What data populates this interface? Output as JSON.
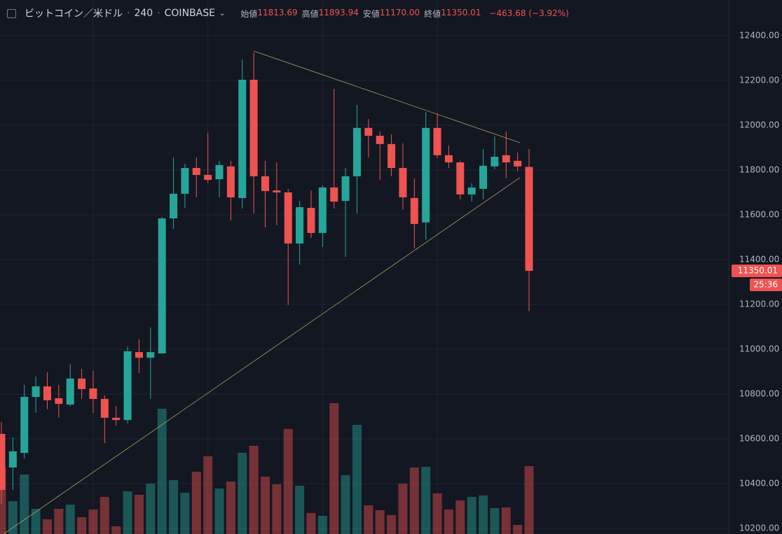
{
  "header": {
    "symbol": "ビットコイン／米ドル",
    "interval": "240",
    "exchange": "COINBASE",
    "ohlc": [
      {
        "label": "始値",
        "value": "11813.69"
      },
      {
        "label": "高値",
        "value": "11893.94"
      },
      {
        "label": "安値",
        "value": "11170.00"
      },
      {
        "label": "終値",
        "value": "11350.01"
      }
    ],
    "change": "−463.68 (−3.92%)"
  },
  "chart_data": {
    "type": "candlestick",
    "open": [
      10622,
      10472,
      10537,
      10787,
      10834,
      10781,
      10753,
      10869,
      10825,
      10778,
      10694,
      10684,
      10987,
      10962,
      10981,
      11584,
      11694,
      11809,
      11778,
      11759,
      11816,
      11675,
      12203,
      11772,
      11709,
      11700,
      11472,
      11631,
      11519,
      11722,
      11662,
      11772,
      11988,
      11953,
      11916,
      11809,
      11675,
      11566,
      11988,
      11866,
      11834,
      11691,
      11716,
      11816,
      11866,
      11841,
      11813.69
    ],
    "high": [
      10675,
      10606,
      10841,
      10878,
      10897,
      10841,
      10934,
      10912,
      10903,
      10794,
      10747,
      11012,
      11044,
      11097,
      11591,
      11856,
      11828,
      11856,
      11966,
      11841,
      11841,
      12294,
      12325,
      11841,
      11834,
      11716,
      11662,
      11709,
      11731,
      12162,
      11809,
      12091,
      12028,
      11972,
      11959,
      11919,
      11763,
      12059,
      12053,
      11909,
      11841,
      11741,
      11894,
      11950,
      11972,
      11878,
      11893.94
    ],
    "low": [
      10309,
      10372,
      10512,
      10716,
      10731,
      10694,
      10747,
      10778,
      10716,
      10581,
      10659,
      10669,
      10894,
      10778,
      10981,
      11537,
      11631,
      11678,
      11741,
      11678,
      11575,
      11628,
      11606,
      11544,
      11553,
      11197,
      11378,
      11497,
      11456,
      11628,
      11412,
      11606,
      11856,
      11756,
      11772,
      11622,
      11450,
      11488,
      11853,
      11809,
      11669,
      11659,
      11669,
      11803,
      11763,
      11794,
      11170
    ],
    "close": [
      10372,
      10544,
      10787,
      10834,
      10772,
      10756,
      10869,
      10822,
      10778,
      10694,
      10684,
      10991,
      10962,
      10987,
      11584,
      11694,
      11809,
      11778,
      11756,
      11822,
      11678,
      12203,
      11772,
      11706,
      11700,
      11472,
      11634,
      11519,
      11722,
      11659,
      11772,
      11988,
      11953,
      11916,
      11809,
      11678,
      11559,
      11988,
      11866,
      11834,
      11691,
      11722,
      11819,
      11859,
      11834,
      11816,
      11350.01
    ],
    "volume": [
      95,
      47,
      85,
      36,
      21,
      36,
      42,
      24,
      35,
      53,
      11,
      61,
      56,
      72,
      179,
      77,
      59,
      89,
      111,
      65,
      75,
      116,
      126,
      82,
      71,
      150,
      69,
      30,
      26,
      187,
      84,
      156,
      41,
      34,
      27,
      72,
      95,
      96,
      58,
      35,
      48,
      53,
      55,
      37,
      38,
      13,
      97
    ],
    "up_color": "#26a69a",
    "down_color": "#ef5350",
    "ylim": [
      10175,
      12559
    ],
    "yticks": [
      {
        "value": 12400,
        "label": "12400.00"
      },
      {
        "value": 12200,
        "label": "12200.00"
      },
      {
        "value": 12000,
        "label": "12000.00"
      },
      {
        "value": 11800,
        "label": "11800.00"
      },
      {
        "value": 11600,
        "label": "11600.00"
      },
      {
        "value": 11400,
        "label": "11400.00"
      },
      {
        "value": 11200,
        "label": "11200.00"
      },
      {
        "value": 11000,
        "label": "11000.00"
      },
      {
        "value": 10800,
        "label": "10800.00"
      },
      {
        "value": 10600,
        "label": "10600.00"
      },
      {
        "value": 10400,
        "label": "10400.00"
      },
      {
        "value": 10200,
        "label": "10200.00"
      }
    ],
    "grid": true,
    "last_price_label": "11350.01",
    "countdown": "25:36",
    "trendlines": [
      {
        "start": [
          22,
          12331
        ],
        "end": [
          45.2,
          11922
        ]
      },
      {
        "start": [
          0.2,
          10175
        ],
        "end": [
          45.2,
          11766
        ]
      }
    ]
  }
}
